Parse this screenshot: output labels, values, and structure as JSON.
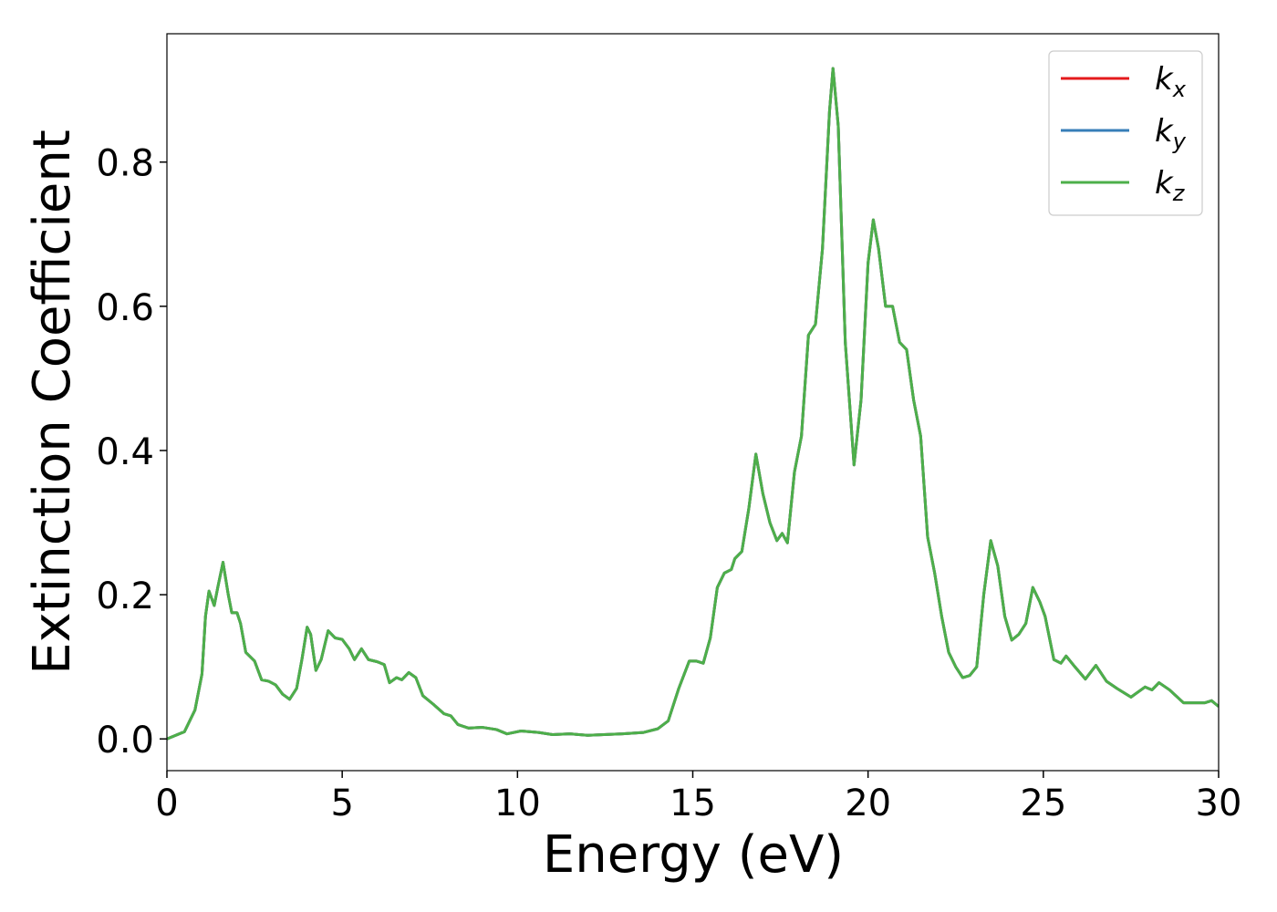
{
  "chart_data": {
    "type": "line",
    "xlabel": "Energy (eV)",
    "ylabel": "Extinction Coefficient",
    "xlim": [
      0,
      30
    ],
    "ylim": [
      -0.044,
      0.978
    ],
    "xticks": [
      0,
      5,
      10,
      15,
      20,
      25,
      30
    ],
    "yticks": [
      {
        "value": 0,
        "label": "0.0"
      },
      0.2,
      0.4,
      0.6,
      0.8
    ],
    "legend": "upper right",
    "x": [
      0,
      0.5,
      0.8,
      1.0,
      1.1,
      1.2,
      1.35,
      1.45,
      1.6,
      1.75,
      1.85,
      2.0,
      2.1,
      2.25,
      2.5,
      2.7,
      2.9,
      3.1,
      3.3,
      3.5,
      3.7,
      3.85,
      4.0,
      4.1,
      4.25,
      4.4,
      4.6,
      4.8,
      5.0,
      5.2,
      5.35,
      5.55,
      5.75,
      6.0,
      6.2,
      6.35,
      6.55,
      6.7,
      6.9,
      7.1,
      7.3,
      7.6,
      7.9,
      8.1,
      8.3,
      8.6,
      9.0,
      9.4,
      9.7,
      10.1,
      10.6,
      11.0,
      11.5,
      12.0,
      13.0,
      13.6,
      14.0,
      14.3,
      14.6,
      14.9,
      15.1,
      15.3,
      15.5,
      15.7,
      15.9,
      16.1,
      16.2,
      16.4,
      16.6,
      16.8,
      17.0,
      17.2,
      17.4,
      17.55,
      17.7,
      17.9,
      18.1,
      18.3,
      18.5,
      18.7,
      18.9,
      19.0,
      19.15,
      19.35,
      19.6,
      19.8,
      20.0,
      20.15,
      20.3,
      20.5,
      20.7,
      20.9,
      21.1,
      21.3,
      21.5,
      21.7,
      21.9,
      22.1,
      22.3,
      22.5,
      22.7,
      22.9,
      23.1,
      23.3,
      23.5,
      23.7,
      23.9,
      24.1,
      24.3,
      24.5,
      24.7,
      24.9,
      25.05,
      25.3,
      25.5,
      25.65,
      25.9,
      26.2,
      26.5,
      26.8,
      27.1,
      27.5,
      27.9,
      28.1,
      28.3,
      28.6,
      29.0,
      29.3,
      29.6,
      29.8,
      30.0
    ],
    "series": [
      {
        "name": "k_x",
        "color": "#e41a1c",
        "values": [
          0,
          0.01,
          0.04,
          0.09,
          0.17,
          0.205,
          0.185,
          0.21,
          0.245,
          0.2,
          0.175,
          0.175,
          0.16,
          0.12,
          0.108,
          0.082,
          0.08,
          0.075,
          0.062,
          0.055,
          0.07,
          0.11,
          0.155,
          0.145,
          0.095,
          0.11,
          0.15,
          0.14,
          0.138,
          0.125,
          0.11,
          0.125,
          0.11,
          0.107,
          0.103,
          0.078,
          0.085,
          0.082,
          0.092,
          0.085,
          0.06,
          0.048,
          0.035,
          0.032,
          0.02,
          0.015,
          0.016,
          0.013,
          0.007,
          0.011,
          0.009,
          0.006,
          0.007,
          0.005,
          0.007,
          0.009,
          0.014,
          0.025,
          0.07,
          0.108,
          0.108,
          0.105,
          0.14,
          0.21,
          0.23,
          0.235,
          0.25,
          0.26,
          0.32,
          0.395,
          0.34,
          0.3,
          0.275,
          0.285,
          0.272,
          0.37,
          0.42,
          0.56,
          0.575,
          0.68,
          0.87,
          0.93,
          0.85,
          0.55,
          0.38,
          0.47,
          0.66,
          0.72,
          0.68,
          0.6,
          0.6,
          0.55,
          0.54,
          0.47,
          0.42,
          0.28,
          0.23,
          0.17,
          0.12,
          0.1,
          0.085,
          0.088,
          0.1,
          0.2,
          0.275,
          0.24,
          0.17,
          0.137,
          0.145,
          0.16,
          0.21,
          0.19,
          0.17,
          0.11,
          0.105,
          0.115,
          0.1,
          0.083,
          0.102,
          0.08,
          0.07,
          0.058,
          0.072,
          0.068,
          0.078,
          0.068,
          0.05,
          0.05,
          0.05,
          0.053,
          0.045
        ]
      },
      {
        "name": "k_y",
        "color": "#377eb8",
        "values": [
          0,
          0.01,
          0.04,
          0.09,
          0.17,
          0.205,
          0.185,
          0.21,
          0.245,
          0.2,
          0.175,
          0.175,
          0.16,
          0.12,
          0.108,
          0.082,
          0.08,
          0.075,
          0.062,
          0.055,
          0.07,
          0.11,
          0.155,
          0.145,
          0.095,
          0.11,
          0.15,
          0.14,
          0.138,
          0.125,
          0.11,
          0.125,
          0.11,
          0.107,
          0.103,
          0.078,
          0.085,
          0.082,
          0.092,
          0.085,
          0.06,
          0.048,
          0.035,
          0.032,
          0.02,
          0.015,
          0.016,
          0.013,
          0.007,
          0.011,
          0.009,
          0.006,
          0.007,
          0.005,
          0.007,
          0.009,
          0.014,
          0.025,
          0.07,
          0.108,
          0.108,
          0.105,
          0.14,
          0.21,
          0.23,
          0.235,
          0.25,
          0.26,
          0.32,
          0.395,
          0.34,
          0.3,
          0.275,
          0.285,
          0.272,
          0.37,
          0.42,
          0.56,
          0.575,
          0.68,
          0.87,
          0.93,
          0.85,
          0.55,
          0.38,
          0.47,
          0.66,
          0.72,
          0.68,
          0.6,
          0.6,
          0.55,
          0.54,
          0.47,
          0.42,
          0.28,
          0.23,
          0.17,
          0.12,
          0.1,
          0.085,
          0.088,
          0.1,
          0.2,
          0.275,
          0.24,
          0.17,
          0.137,
          0.145,
          0.16,
          0.21,
          0.19,
          0.17,
          0.11,
          0.105,
          0.115,
          0.1,
          0.083,
          0.102,
          0.08,
          0.07,
          0.058,
          0.072,
          0.068,
          0.078,
          0.068,
          0.05,
          0.05,
          0.05,
          0.053,
          0.045
        ]
      },
      {
        "name": "k_z",
        "color": "#4daf4a",
        "values": [
          0,
          0.01,
          0.04,
          0.09,
          0.17,
          0.205,
          0.185,
          0.21,
          0.245,
          0.2,
          0.175,
          0.175,
          0.16,
          0.12,
          0.108,
          0.082,
          0.08,
          0.075,
          0.062,
          0.055,
          0.07,
          0.11,
          0.155,
          0.145,
          0.095,
          0.11,
          0.15,
          0.14,
          0.138,
          0.125,
          0.11,
          0.125,
          0.11,
          0.107,
          0.103,
          0.078,
          0.085,
          0.082,
          0.092,
          0.085,
          0.06,
          0.048,
          0.035,
          0.032,
          0.02,
          0.015,
          0.016,
          0.013,
          0.007,
          0.011,
          0.009,
          0.006,
          0.007,
          0.005,
          0.007,
          0.009,
          0.014,
          0.025,
          0.07,
          0.108,
          0.108,
          0.105,
          0.14,
          0.21,
          0.23,
          0.235,
          0.25,
          0.26,
          0.32,
          0.395,
          0.34,
          0.3,
          0.275,
          0.285,
          0.272,
          0.37,
          0.42,
          0.56,
          0.575,
          0.68,
          0.87,
          0.93,
          0.85,
          0.55,
          0.38,
          0.47,
          0.66,
          0.72,
          0.68,
          0.6,
          0.6,
          0.55,
          0.54,
          0.47,
          0.42,
          0.28,
          0.23,
          0.17,
          0.12,
          0.1,
          0.085,
          0.088,
          0.1,
          0.2,
          0.275,
          0.24,
          0.17,
          0.137,
          0.145,
          0.16,
          0.21,
          0.19,
          0.17,
          0.11,
          0.105,
          0.115,
          0.1,
          0.083,
          0.102,
          0.08,
          0.07,
          0.058,
          0.072,
          0.068,
          0.078,
          0.068,
          0.05,
          0.05,
          0.05,
          0.053,
          0.045
        ]
      }
    ]
  }
}
